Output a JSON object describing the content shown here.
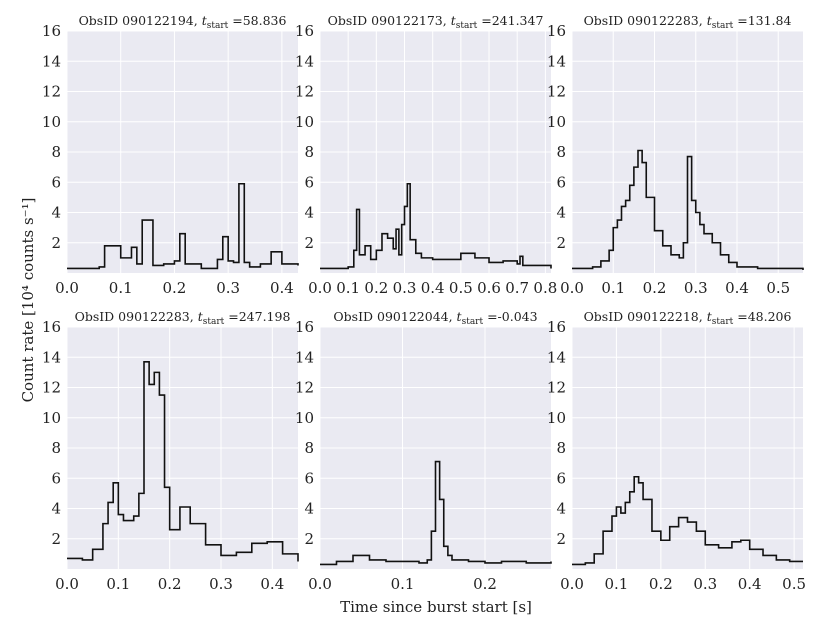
{
  "figure": {
    "ylabel": "Count rate [10⁴ counts s⁻¹]",
    "xlabel": "Time since burst start [s]",
    "colors": {
      "panel_bg": "#eaeaf2",
      "grid": "#ffffff",
      "line": "#111111",
      "text": "#222222"
    }
  },
  "chart_data": [
    {
      "type": "line",
      "title": "ObsID 090122194, t_start =58.836",
      "title_parts": [
        "ObsID 090122194, ",
        "t",
        "start",
        " =58.836"
      ],
      "xlim": [
        0,
        0.43
      ],
      "ylim": [
        0,
        16
      ],
      "xticks": [
        0.0,
        0.1,
        0.2,
        0.3,
        0.4
      ],
      "xtick_labels": [
        "0.0",
        "0.1",
        "0.2",
        "0.3",
        "0.4"
      ],
      "yticks": [
        2,
        4,
        6,
        8,
        10,
        12,
        14,
        16
      ],
      "ytick_labels": [
        "2",
        "4",
        "6",
        "8",
        "10",
        "12",
        "14",
        "16"
      ],
      "series": [
        {
          "x": [
            0,
            0.06,
            0.07,
            0.1,
            0.12,
            0.13,
            0.14,
            0.16,
            0.18,
            0.2,
            0.21,
            0.22,
            0.25,
            0.28,
            0.29,
            0.3,
            0.31,
            0.32,
            0.33,
            0.34,
            0.36,
            0.38,
            0.4,
            0.43
          ],
          "y": [
            0.3,
            0.4,
            1.8,
            1.0,
            1.7,
            0.6,
            3.5,
            0.5,
            0.6,
            0.8,
            2.6,
            0.6,
            0.3,
            0.9,
            2.4,
            0.8,
            0.7,
            5.9,
            0.7,
            0.4,
            0.6,
            1.4,
            0.6,
            0.5
          ]
        }
      ]
    },
    {
      "type": "line",
      "title": "ObsID 090122173, t_start =241.347",
      "title_parts": [
        "ObsID 090122173, ",
        "t",
        "start",
        " =241.347"
      ],
      "xlim": [
        0,
        0.82
      ],
      "ylim": [
        0,
        16
      ],
      "xticks": [
        0.0,
        0.1,
        0.2,
        0.3,
        0.4,
        0.5,
        0.6,
        0.7,
        0.8
      ],
      "xtick_labels": [
        "0.0",
        "0.1",
        "0.2",
        "0.3",
        "0.4",
        "0.5",
        "0.6",
        "0.7",
        "0.8"
      ],
      "yticks": [
        2,
        4,
        6,
        8,
        10,
        12,
        14,
        16
      ],
      "ytick_labels": [
        "2",
        "4",
        "6",
        "8",
        "10",
        "12",
        "14",
        "16"
      ],
      "series": [
        {
          "x": [
            0,
            0.1,
            0.12,
            0.13,
            0.14,
            0.16,
            0.18,
            0.2,
            0.22,
            0.24,
            0.26,
            0.27,
            0.28,
            0.29,
            0.3,
            0.31,
            0.32,
            0.34,
            0.36,
            0.4,
            0.45,
            0.5,
            0.55,
            0.6,
            0.65,
            0.7,
            0.71,
            0.72,
            0.75,
            0.82
          ],
          "y": [
            0.3,
            0.4,
            1.5,
            4.2,
            1.2,
            1.8,
            0.9,
            1.5,
            2.6,
            2.3,
            1.6,
            2.9,
            1.2,
            3.2,
            4.4,
            5.9,
            2.2,
            1.3,
            1.0,
            0.9,
            0.9,
            1.3,
            1.0,
            0.7,
            0.8,
            0.6,
            1.1,
            0.5,
            0.5,
            0.3
          ]
        }
      ]
    },
    {
      "type": "line",
      "title": "ObsID 090122283, t_start =131.84",
      "title_parts": [
        "ObsID 090122283, ",
        "t",
        "start",
        " =131.84"
      ],
      "xlim": [
        0,
        0.56
      ],
      "ylim": [
        0,
        16
      ],
      "xticks": [
        0.0,
        0.1,
        0.2,
        0.3,
        0.4,
        0.5
      ],
      "xtick_labels": [
        "0.0",
        "0.1",
        "0.2",
        "0.3",
        "0.4",
        "0.5"
      ],
      "yticks": [
        2,
        4,
        6,
        8,
        10,
        12,
        14,
        16
      ],
      "ytick_labels": [
        "2",
        "4",
        "6",
        "8",
        "10",
        "12",
        "14",
        "16"
      ],
      "series": [
        {
          "x": [
            0,
            0.05,
            0.07,
            0.09,
            0.1,
            0.11,
            0.12,
            0.13,
            0.14,
            0.15,
            0.16,
            0.17,
            0.18,
            0.2,
            0.22,
            0.24,
            0.26,
            0.27,
            0.28,
            0.29,
            0.3,
            0.31,
            0.32,
            0.34,
            0.36,
            0.38,
            0.4,
            0.45,
            0.5,
            0.56
          ],
          "y": [
            0.3,
            0.4,
            0.8,
            1.5,
            3.0,
            3.5,
            4.4,
            4.8,
            5.8,
            7.0,
            8.1,
            7.3,
            5.0,
            2.8,
            1.8,
            1.2,
            1.0,
            2.0,
            7.7,
            4.8,
            4.0,
            3.2,
            2.6,
            2.0,
            1.2,
            0.7,
            0.4,
            0.3,
            0.3,
            0.2
          ]
        }
      ]
    },
    {
      "type": "line",
      "title": "ObsID 090122283, t_start =247.198",
      "title_parts": [
        "ObsID 090122283, ",
        "t",
        "start",
        " =247.198"
      ],
      "xlim": [
        0,
        0.45
      ],
      "ylim": [
        0,
        16
      ],
      "xticks": [
        0.0,
        0.1,
        0.2,
        0.3,
        0.4
      ],
      "xtick_labels": [
        "0.0",
        "0.1",
        "0.2",
        "0.3",
        "0.4"
      ],
      "yticks": [
        2,
        4,
        6,
        8,
        10,
        12,
        14,
        16
      ],
      "ytick_labels": [
        "2",
        "4",
        "6",
        "8",
        "10",
        "12",
        "14",
        "16"
      ],
      "series": [
        {
          "x": [
            0,
            0.03,
            0.05,
            0.07,
            0.08,
            0.09,
            0.1,
            0.11,
            0.13,
            0.14,
            0.15,
            0.16,
            0.17,
            0.18,
            0.19,
            0.2,
            0.22,
            0.24,
            0.27,
            0.3,
            0.33,
            0.36,
            0.39,
            0.42,
            0.45
          ],
          "y": [
            0.7,
            0.6,
            1.3,
            3.0,
            4.4,
            5.7,
            3.6,
            3.2,
            3.5,
            5.0,
            13.7,
            12.2,
            13.0,
            11.5,
            5.4,
            2.6,
            4.1,
            3.0,
            1.6,
            0.9,
            1.1,
            1.7,
            1.8,
            1.0,
            0.5
          ]
        }
      ]
    },
    {
      "type": "line",
      "title": "ObsID 090122044, t_start =-0.043",
      "title_parts": [
        "ObsID 090122044, ",
        "t",
        "start",
        " =-0.043"
      ],
      "xlim": [
        0,
        0.28
      ],
      "ylim": [
        0,
        16
      ],
      "xticks": [
        0.0,
        0.1,
        0.2
      ],
      "xtick_labels": [
        "0.0",
        "0.1",
        "0.2"
      ],
      "yticks": [
        2,
        4,
        6,
        8,
        10,
        12,
        14,
        16
      ],
      "ytick_labels": [
        "2",
        "4",
        "6",
        "8",
        "10",
        "12",
        "14",
        "16"
      ],
      "series": [
        {
          "x": [
            0,
            0.02,
            0.04,
            0.06,
            0.08,
            0.1,
            0.12,
            0.13,
            0.135,
            0.14,
            0.145,
            0.15,
            0.155,
            0.16,
            0.18,
            0.2,
            0.22,
            0.25,
            0.28
          ],
          "y": [
            0.3,
            0.5,
            0.9,
            0.6,
            0.5,
            0.5,
            0.4,
            0.6,
            2.5,
            7.1,
            4.6,
            1.5,
            0.9,
            0.6,
            0.5,
            0.4,
            0.5,
            0.4,
            0.5
          ]
        }
      ]
    },
    {
      "type": "line",
      "title": "ObsID 090122218, t_start =48.206",
      "title_parts": [
        "ObsID 090122218, ",
        "t",
        "start",
        " =48.206"
      ],
      "xlim": [
        0,
        0.52
      ],
      "ylim": [
        0,
        16
      ],
      "xticks": [
        0.0,
        0.1,
        0.2,
        0.3,
        0.4,
        0.5
      ],
      "xtick_labels": [
        "0.0",
        "0.1",
        "0.2",
        "0.3",
        "0.4",
        "0.5"
      ],
      "yticks": [
        2,
        4,
        6,
        8,
        10,
        12,
        14,
        16
      ],
      "ytick_labels": [
        "2",
        "4",
        "6",
        "8",
        "10",
        "12",
        "14",
        "16"
      ],
      "series": [
        {
          "x": [
            0,
            0.03,
            0.05,
            0.07,
            0.09,
            0.1,
            0.11,
            0.12,
            0.13,
            0.14,
            0.15,
            0.16,
            0.18,
            0.2,
            0.22,
            0.24,
            0.26,
            0.28,
            0.3,
            0.33,
            0.36,
            0.38,
            0.4,
            0.43,
            0.46,
            0.49,
            0.52
          ],
          "y": [
            0.3,
            0.4,
            1.0,
            2.5,
            3.5,
            4.1,
            3.7,
            4.4,
            5.1,
            6.1,
            5.7,
            4.6,
            2.5,
            1.9,
            2.8,
            3.4,
            3.1,
            2.5,
            1.6,
            1.4,
            1.8,
            1.9,
            1.3,
            0.9,
            0.6,
            0.5,
            0.5
          ]
        }
      ]
    }
  ]
}
